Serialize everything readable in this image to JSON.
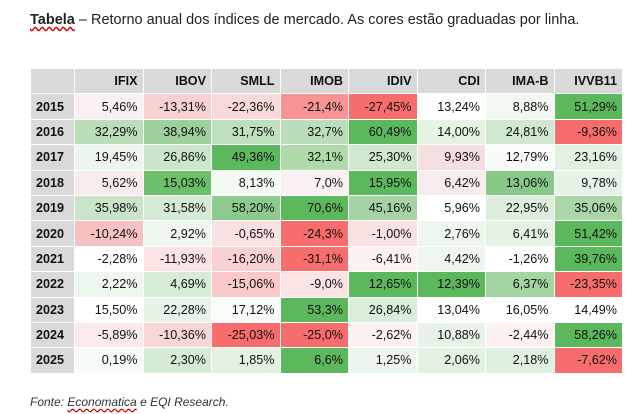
{
  "caption": {
    "label": "Tabela",
    "text": " – Retorno anual dos índices de mercado. As cores estão graduadas por linha."
  },
  "footer": {
    "prefix": "Fonte: ",
    "source": "Economatica",
    "suffix": " e EQI Research."
  },
  "table": {
    "columns": [
      "IFIX",
      "IBOV",
      "SMLL",
      "IMOB",
      "IDIV",
      "CDI",
      "IMA-B",
      "IVVB11"
    ],
    "rows": [
      {
        "year": "2015",
        "cells": [
          "5,46%",
          "-13,31%",
          "-22,36%",
          "-21,4%",
          "-27,45%",
          "13,24%",
          "8,88%",
          "51,29%"
        ],
        "colors": [
          "#f9f1f1",
          "#f8d1d1",
          "#f9d9d9",
          "#f79393",
          "#f76d6d",
          "#ffffff",
          "#f3f8f3",
          "#5cb85c"
        ]
      },
      {
        "year": "2016",
        "cells": [
          "32,29%",
          "38,94%",
          "31,75%",
          "32,7%",
          "60,49%",
          "14,00%",
          "24,81%",
          "-9,36%"
        ],
        "colors": [
          "#b9deb9",
          "#9ed09e",
          "#bfe0bf",
          "#b9deb9",
          "#5cb85c",
          "#e4f3e4",
          "#cfe8cf",
          "#f76d6d"
        ]
      },
      {
        "year": "2017",
        "cells": [
          "19,45%",
          "26,86%",
          "49,36%",
          "32,1%",
          "25,30%",
          "9,93%",
          "12,79%",
          "23,16%"
        ],
        "colors": [
          "#ecf6ec",
          "#cce6cc",
          "#5cb85c",
          "#b1daab",
          "#cfe8cf",
          "#f4dede",
          "#f8fbf8",
          "#e1f0e1"
        ]
      },
      {
        "year": "2018",
        "cells": [
          "5,62%",
          "15,03%",
          "8,13%",
          "7,0%",
          "15,95%",
          "6,42%",
          "13,06%",
          "9,78%"
        ],
        "colors": [
          "#f8ebeb",
          "#6cc06c",
          "#f3f9f3",
          "#f9f1f1",
          "#5cb85c",
          "#f8ebeb",
          "#8ac88a",
          "#e5f2e5"
        ]
      },
      {
        "year": "2019",
        "cells": [
          "35,98%",
          "31,58%",
          "58,20%",
          "70,6%",
          "45,16%",
          "5,96%",
          "22,95%",
          "35,06%"
        ],
        "colors": [
          "#c9e4c9",
          "#d4ead4",
          "#8dca8d",
          "#5cb85c",
          "#a6d3a6",
          "#ffffff",
          "#ddeedd",
          "#aad6aa"
        ]
      },
      {
        "year": "2020",
        "cells": [
          "-10,24%",
          "2,92%",
          "-0,65%",
          "-24,3%",
          "-1,00%",
          "2,76%",
          "6,41%",
          "51,42%"
        ],
        "colors": [
          "#f8c0c0",
          "#eef7ee",
          "#f9e1e1",
          "#f76d6d",
          "#f9e1e1",
          "#eef7ee",
          "#e4f2e4",
          "#5cb85c"
        ]
      },
      {
        "year": "2021",
        "cells": [
          "-2,28%",
          "-11,93%",
          "-16,20%",
          "-31,1%",
          "-6,41%",
          "4,42%",
          "-1,26%",
          "39,76%"
        ],
        "colors": [
          "#ffffff",
          "#fbe3e3",
          "#f9d1d1",
          "#f76d6d",
          "#fdf1f1",
          "#eef7ee",
          "#ffffff",
          "#5cb85c"
        ]
      },
      {
        "year": "2022",
        "cells": [
          "2,22%",
          "4,69%",
          "-15,06%",
          "-9,0%",
          "12,65%",
          "12,39%",
          "6,37%",
          "-23,35%"
        ],
        "colors": [
          "#eef7ee",
          "#d7ecd7",
          "#f9c9c9",
          "#fbe3e3",
          "#5cb85c",
          "#5cb85c",
          "#a3d5a3",
          "#f76d6d"
        ]
      },
      {
        "year": "2023",
        "cells": [
          "15,50%",
          "22,28%",
          "17,12%",
          "53,3%",
          "26,84%",
          "13,04%",
          "16,05%",
          "14,49%"
        ],
        "colors": [
          "#ffffff",
          "#e7f3e7",
          "#f9fcf9",
          "#5cb85c",
          "#d9edd9",
          "#ffffff",
          "#ffffff",
          "#ffffff"
        ]
      },
      {
        "year": "2024",
        "cells": [
          "-5,89%",
          "-10,36%",
          "-25,03%",
          "-25,0%",
          "-2,62%",
          "10,88%",
          "-2,44%",
          "58,26%"
        ],
        "colors": [
          "#fbeaea",
          "#f9d6d6",
          "#f76d6d",
          "#f76d6d",
          "#fcf2f2",
          "#e7f3e7",
          "#fcf2f2",
          "#5cb85c"
        ]
      },
      {
        "year": "2025",
        "cells": [
          "0,19%",
          "2,30%",
          "1,85%",
          "6,6%",
          "1,25%",
          "2,06%",
          "2,18%",
          "-7,62%"
        ],
        "colors": [
          "#f7fbf7",
          "#d6ebd6",
          "#e3f1e3",
          "#5cb85c",
          "#edf6ed",
          "#e3f1e3",
          "#e0f0e0",
          "#f76d6d"
        ]
      }
    ]
  }
}
